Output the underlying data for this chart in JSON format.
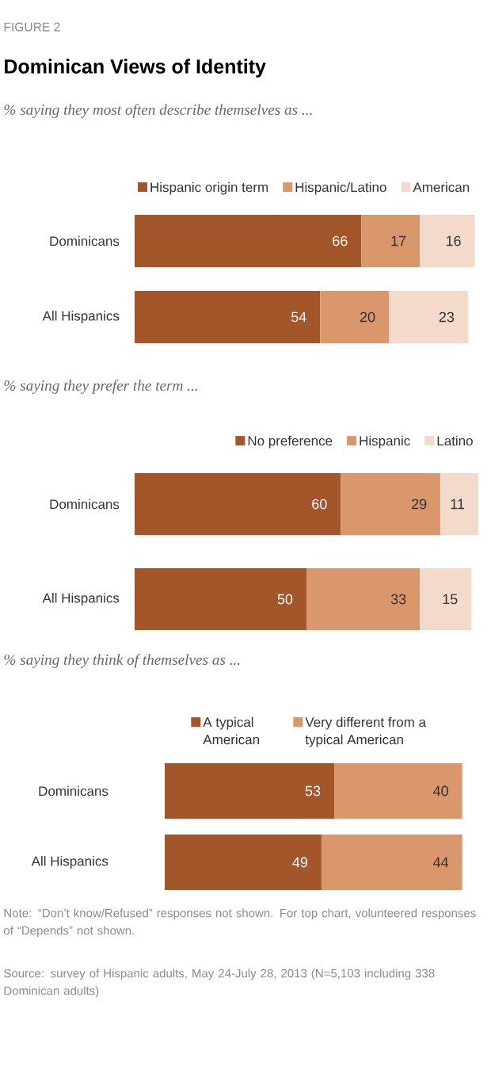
{
  "chart_data": [
    {
      "type": "bar",
      "orientation": "horizontal",
      "stacked": true,
      "title": "Dominican Views of Identity",
      "subtitle": "% saying they most often describe themselves as ...",
      "annotations": [
        "FIGURE 2"
      ],
      "categories": [
        "Dominicans",
        "All Hispanics"
      ],
      "data_labels": true,
      "legend": "top",
      "series": [
        {
          "name": "Hispanic origin term",
          "color": "#a3562a",
          "values": [
            66,
            54
          ]
        },
        {
          "name": "Hispanic/Latino",
          "color": "#d9976b",
          "values": [
            17,
            20
          ]
        },
        {
          "name": "American",
          "color": "#f3dacb",
          "values": [
            16,
            23
          ]
        }
      ]
    },
    {
      "type": "bar",
      "orientation": "horizontal",
      "stacked": true,
      "subtitle": "% saying they prefer the term ...",
      "categories": [
        "Dominicans",
        "All Hispanics"
      ],
      "data_labels": true,
      "legend": "top",
      "series": [
        {
          "name": "No preference",
          "color": "#a3562a",
          "values": [
            60,
            50
          ]
        },
        {
          "name": "Hispanic",
          "color": "#d9976b",
          "values": [
            29,
            33
          ]
        },
        {
          "name": "Latino",
          "color": "#f3dacb",
          "values": [
            11,
            15
          ]
        }
      ]
    },
    {
      "type": "bar",
      "orientation": "horizontal",
      "stacked": true,
      "subtitle": "% saying they think of themselves as ...",
      "categories": [
        "Dominicans",
        "All Hispanics"
      ],
      "data_labels": true,
      "legend": "top",
      "annotations": [
        "Note: “Don’t know/Refused” responses not shown. For top chart, volunteered responses of “Depends” not shown.",
        "Source: survey of Hispanic adults, May 24-July 28, 2013 (N=5,103 including 338 Dominican adults)"
      ],
      "series": [
        {
          "name": "A typical American",
          "color": "#a3562a",
          "values": [
            53,
            49
          ]
        },
        {
          "name": "Very different from a typical American",
          "color": "#d9976b",
          "values": [
            40,
            44
          ]
        }
      ]
    }
  ]
}
